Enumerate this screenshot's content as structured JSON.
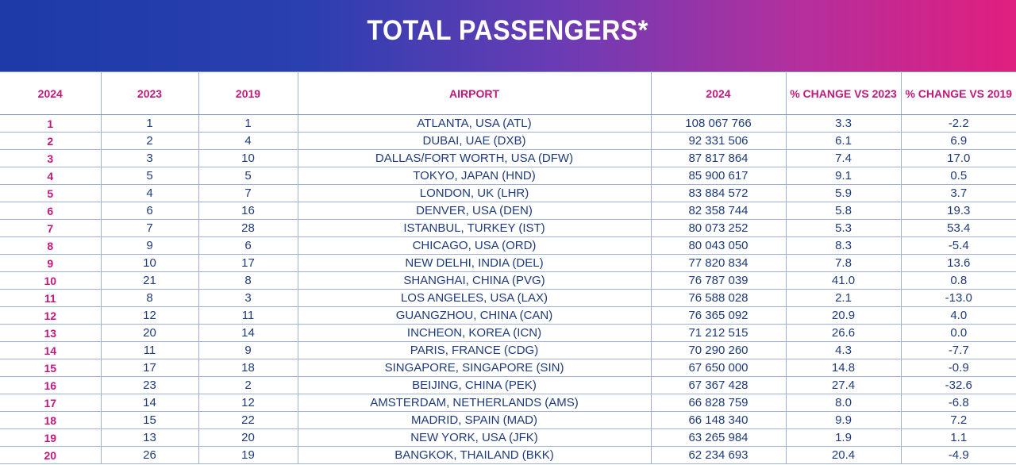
{
  "title": "TOTAL PASSENGERS*",
  "table": {
    "columns": [
      "2024",
      "2023",
      "2019",
      "AIRPORT",
      "2024",
      "% CHANGE VS 2023",
      "% CHANGE VS 2019"
    ],
    "rows": [
      {
        "rank_2024": "1",
        "rank_2023": "1",
        "rank_2019": "1",
        "airport": "ATLANTA, USA (ATL)",
        "passengers_2024": "108 067 766",
        "change_vs_2023": "3.3",
        "change_vs_2019": "-2.2"
      },
      {
        "rank_2024": "2",
        "rank_2023": "2",
        "rank_2019": "4",
        "airport": "DUBAI, UAE (DXB)",
        "passengers_2024": "92 331 506",
        "change_vs_2023": "6.1",
        "change_vs_2019": "6.9"
      },
      {
        "rank_2024": "3",
        "rank_2023": "3",
        "rank_2019": "10",
        "airport": "DALLAS/FORT WORTH, USA (DFW)",
        "passengers_2024": "87 817 864",
        "change_vs_2023": "7.4",
        "change_vs_2019": "17.0"
      },
      {
        "rank_2024": "4",
        "rank_2023": "5",
        "rank_2019": "5",
        "airport": "TOKYO, JAPAN (HND)",
        "passengers_2024": "85 900 617",
        "change_vs_2023": "9.1",
        "change_vs_2019": "0.5"
      },
      {
        "rank_2024": "5",
        "rank_2023": "4",
        "rank_2019": "7",
        "airport": "LONDON, UK (LHR)",
        "passengers_2024": "83 884 572",
        "change_vs_2023": "5.9",
        "change_vs_2019": "3.7"
      },
      {
        "rank_2024": "6",
        "rank_2023": "6",
        "rank_2019": "16",
        "airport": "DENVER, USA (DEN)",
        "passengers_2024": "82 358 744",
        "change_vs_2023": "5.8",
        "change_vs_2019": "19.3"
      },
      {
        "rank_2024": "7",
        "rank_2023": "7",
        "rank_2019": "28",
        "airport": "ISTANBUL, TURKEY (IST)",
        "passengers_2024": "80 073 252",
        "change_vs_2023": "5.3",
        "change_vs_2019": "53.4"
      },
      {
        "rank_2024": "8",
        "rank_2023": "9",
        "rank_2019": "6",
        "airport": "CHICAGO, USA (ORD)",
        "passengers_2024": "80 043 050",
        "change_vs_2023": "8.3",
        "change_vs_2019": "-5.4"
      },
      {
        "rank_2024": "9",
        "rank_2023": "10",
        "rank_2019": "17",
        "airport": "NEW DELHI, INDIA (DEL)",
        "passengers_2024": "77 820 834",
        "change_vs_2023": "7.8",
        "change_vs_2019": "13.6"
      },
      {
        "rank_2024": "10",
        "rank_2023": "21",
        "rank_2019": "8",
        "airport": "SHANGHAI, CHINA (PVG)",
        "passengers_2024": "76 787 039",
        "change_vs_2023": "41.0",
        "change_vs_2019": "0.8"
      },
      {
        "rank_2024": "11",
        "rank_2023": "8",
        "rank_2019": "3",
        "airport": "LOS ANGELES, USA (LAX)",
        "passengers_2024": "76 588 028",
        "change_vs_2023": "2.1",
        "change_vs_2019": "-13.0"
      },
      {
        "rank_2024": "12",
        "rank_2023": "12",
        "rank_2019": "11",
        "airport": "GUANGZHOU, CHINA (CAN)",
        "passengers_2024": "76 365 092",
        "change_vs_2023": "20.9",
        "change_vs_2019": "4.0"
      },
      {
        "rank_2024": "13",
        "rank_2023": "20",
        "rank_2019": "14",
        "airport": "INCHEON, KOREA (ICN)",
        "passengers_2024": "71 212 515",
        "change_vs_2023": "26.6",
        "change_vs_2019": "0.0"
      },
      {
        "rank_2024": "14",
        "rank_2023": "11",
        "rank_2019": "9",
        "airport": "PARIS, FRANCE (CDG)",
        "passengers_2024": "70 290 260",
        "change_vs_2023": "4.3",
        "change_vs_2019": "-7.7"
      },
      {
        "rank_2024": "15",
        "rank_2023": "17",
        "rank_2019": "18",
        "airport": "SINGAPORE, SINGAPORE (SIN)",
        "passengers_2024": "67 650 000",
        "change_vs_2023": "14.8",
        "change_vs_2019": "-0.9"
      },
      {
        "rank_2024": "16",
        "rank_2023": "23",
        "rank_2019": "2",
        "airport": "BEIJING, CHINA (PEK)",
        "passengers_2024": "67 367 428",
        "change_vs_2023": "27.4",
        "change_vs_2019": "-32.6"
      },
      {
        "rank_2024": "17",
        "rank_2023": "14",
        "rank_2019": "12",
        "airport": "AMSTERDAM, NETHERLANDS (AMS)",
        "passengers_2024": "66 828 759",
        "change_vs_2023": "8.0",
        "change_vs_2019": "-6.8"
      },
      {
        "rank_2024": "18",
        "rank_2023": "15",
        "rank_2019": "22",
        "airport": "MADRID, SPAIN (MAD)",
        "passengers_2024": "66 148 340",
        "change_vs_2023": "9.9",
        "change_vs_2019": "7.2"
      },
      {
        "rank_2024": "19",
        "rank_2023": "13",
        "rank_2019": "20",
        "airport": "NEW YORK, USA (JFK)",
        "passengers_2024": "63 265 984",
        "change_vs_2023": "1.9",
        "change_vs_2019": "1.1"
      },
      {
        "rank_2024": "20",
        "rank_2023": "26",
        "rank_2019": "19",
        "airport": "BANGKOK, THAILAND (BKK)",
        "passengers_2024": "62 234 693",
        "change_vs_2023": "20.4",
        "change_vs_2019": "-4.9"
      }
    ]
  },
  "colors": {
    "banner_start": "#1d3aa8",
    "banner_end": "#e01f7e",
    "header_text": "#c2187a",
    "body_text": "#1f3b7a"
  }
}
